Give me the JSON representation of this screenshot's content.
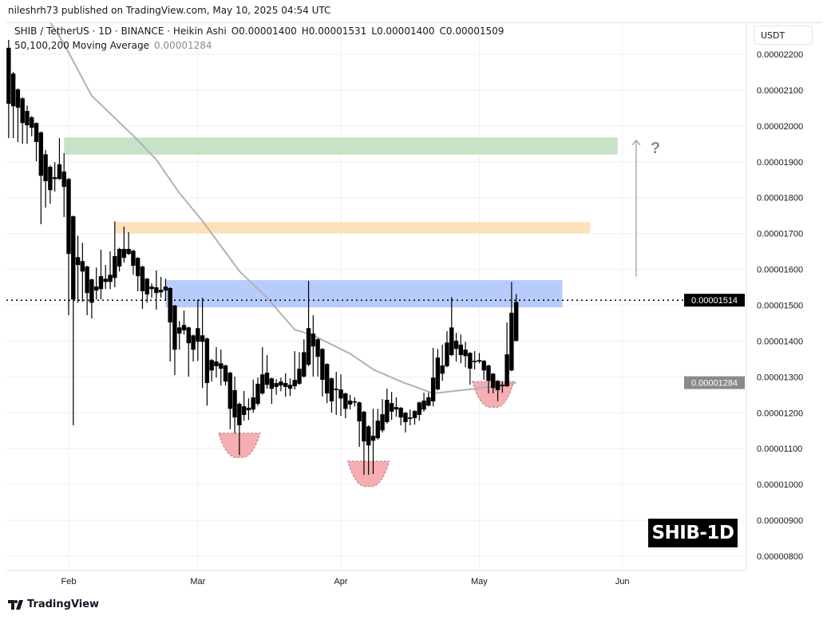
{
  "header": {
    "published": "nileshrh73 published on TradingView.com, May 10, 2025 04:54 UTC",
    "symbol": "SHIB / TetherUS · 1D · BINANCE · Heikin Ashi",
    "open": "O0.00001400",
    "high": "H0.00001531",
    "low": "L0.00001400",
    "close": "C0.00001509",
    "ma_label": "50,100,200 Moving Average",
    "ma_value": "0.00001284"
  },
  "currency_button": "USDT",
  "ticker_label": "SHIB-1D",
  "footer": {
    "logo_text": "TradingView"
  },
  "colors": {
    "candle": "#000000",
    "ma_line": "#b2b2b2",
    "green_zone": "#c3e2c4",
    "orange_zone": "#fde0b5",
    "blue_zone": "#b3c8fc",
    "bowl": "#f7aeb3",
    "grid": "#eef0f4"
  },
  "chart_data": {
    "type": "candlestick",
    "style": "Heikin Ashi",
    "ylim": [
      7.7e-06,
      2.28e-05
    ],
    "y_ticks": [
      "0.00002200",
      "0.00002100",
      "0.00002000",
      "0.00001900",
      "0.00001800",
      "0.00001700",
      "0.00001600",
      "0.00001500",
      "0.00001400",
      "0.00001300",
      "0.00001200",
      "0.00001100",
      "0.00001000",
      "0.00000900",
      "0.00000800"
    ],
    "x_ticks": [
      {
        "label": "Feb",
        "date": "2025-02-01"
      },
      {
        "label": "Mar",
        "date": "2025-03-01"
      },
      {
        "label": "Apr",
        "date": "2025-04-01"
      },
      {
        "label": "May",
        "date": "2025-05-01"
      },
      {
        "label": "Jun",
        "date": "2025-06-01"
      }
    ],
    "grid": true,
    "candles_columns": [
      "date",
      "open",
      "high",
      "low",
      "close"
    ],
    "candles": [
      [
        "2025-01-19",
        2.218e-05,
        2.24e-05,
        1.966e-05,
        2.062e-05
      ],
      [
        "2025-01-20",
        2.146e-05,
        2.151e-05,
        1.966e-05,
        2.055e-05
      ],
      [
        "2025-01-21",
        2.102e-05,
        2.105e-05,
        1.955e-05,
        2.051e-05
      ],
      [
        "2025-01-22",
        2.077e-05,
        2.08e-05,
        1.95e-05,
        2.008e-05
      ],
      [
        "2025-01-23",
        2.042e-05,
        2.057e-05,
        1.95e-05,
        2.002e-05
      ],
      [
        "2025-01-24",
        2.024e-05,
        2.028e-05,
        1.971e-05,
        1.995e-05
      ],
      [
        "2025-01-25",
        2.008e-05,
        2.01e-05,
        1.901e-05,
        1.955e-05
      ],
      [
        "2025-01-26",
        1.982e-05,
        1.985e-05,
        1.726e-05,
        1.861e-05
      ],
      [
        "2025-01-27",
        1.921e-05,
        1.933e-05,
        1.772e-05,
        1.846e-05
      ],
      [
        "2025-01-28",
        1.886e-05,
        1.89e-05,
        1.783e-05,
        1.821e-05
      ],
      [
        "2025-01-29",
        1.852e-05,
        1.899e-05,
        1.817e-05,
        1.857e-05
      ],
      [
        "2025-01-30",
        1.852e-05,
        1.966e-05,
        1.85e-05,
        1.893e-05
      ],
      [
        "2025-01-31",
        1.873e-05,
        1.924e-05,
        1.746e-05,
        1.83e-05
      ],
      [
        "2025-02-01",
        1.852e-05,
        1.855e-05,
        1.472e-05,
        1.643e-05
      ],
      [
        "2025-02-02",
        1.748e-05,
        1.75e-05,
        1.165e-05,
        1.516e-05
      ],
      [
        "2025-02-03",
        1.612e-05,
        1.694e-05,
        1.507e-05,
        1.634e-05
      ],
      [
        "2025-02-04",
        1.623e-05,
        1.674e-05,
        1.51e-05,
        1.594e-05
      ],
      [
        "2025-02-05",
        1.608e-05,
        1.61e-05,
        1.472e-05,
        1.534e-05
      ],
      [
        "2025-02-06",
        1.572e-05,
        1.574e-05,
        1.463e-05,
        1.507e-05
      ],
      [
        "2025-02-07",
        1.541e-05,
        1.605e-05,
        1.516e-05,
        1.552e-05
      ],
      [
        "2025-02-08",
        1.545e-05,
        1.655e-05,
        1.516e-05,
        1.581e-05
      ],
      [
        "2025-02-09",
        1.574e-05,
        1.612e-05,
        1.545e-05,
        1.565e-05
      ],
      [
        "2025-02-10",
        1.565e-05,
        1.65e-05,
        1.545e-05,
        1.585e-05
      ],
      [
        "2025-02-11",
        1.576e-05,
        1.734e-05,
        1.55e-05,
        1.637e-05
      ],
      [
        "2025-02-12",
        1.608e-05,
        1.66e-05,
        1.594e-05,
        1.657e-05
      ],
      [
        "2025-02-13",
        1.632e-05,
        1.719e-05,
        1.619e-05,
        1.657e-05
      ],
      [
        "2025-02-14",
        1.657e-05,
        1.704e-05,
        1.64e-05,
        1.643e-05
      ],
      [
        "2025-02-15",
        1.652e-05,
        1.655e-05,
        1.585e-05,
        1.61e-05
      ],
      [
        "2025-02-16",
        1.632e-05,
        1.634e-05,
        1.539e-05,
        1.581e-05
      ],
      [
        "2025-02-17",
        1.608e-05,
        1.61e-05,
        1.49e-05,
        1.539e-05
      ],
      [
        "2025-02-18",
        1.574e-05,
        1.576e-05,
        1.507e-05,
        1.53e-05
      ],
      [
        "2025-02-19",
        1.545e-05,
        1.561e-05,
        1.521e-05,
        1.552e-05
      ],
      [
        "2025-02-20",
        1.55e-05,
        1.597e-05,
        1.488e-05,
        1.534e-05
      ],
      [
        "2025-02-21",
        1.536e-05,
        1.579e-05,
        1.521e-05,
        1.543e-05
      ],
      [
        "2025-02-22",
        1.541e-05,
        1.574e-05,
        1.514e-05,
        1.552e-05
      ],
      [
        "2025-02-23",
        1.548e-05,
        1.55e-05,
        1.343e-05,
        1.452e-05
      ],
      [
        "2025-02-24",
        1.499e-05,
        1.501e-05,
        1.305e-05,
        1.376e-05
      ],
      [
        "2025-02-25",
        1.421e-05,
        1.456e-05,
        1.376e-05,
        1.438e-05
      ],
      [
        "2025-02-26",
        1.43e-05,
        1.485e-05,
        1.418e-05,
        1.445e-05
      ],
      [
        "2025-02-27",
        1.438e-05,
        1.44e-05,
        1.301e-05,
        1.394e-05
      ],
      [
        "2025-02-28",
        1.416e-05,
        1.418e-05,
        1.343e-05,
        1.376e-05
      ],
      [
        "2025-03-01",
        1.398e-05,
        1.516e-05,
        1.345e-05,
        1.436e-05
      ],
      [
        "2025-03-02",
        1.416e-05,
        1.521e-05,
        1.269e-05,
        1.398e-05
      ],
      [
        "2025-03-03",
        1.407e-05,
        1.41e-05,
        1.22e-05,
        1.283e-05
      ],
      [
        "2025-03-04",
        1.318e-05,
        1.35e-05,
        1.287e-05,
        1.347e-05
      ],
      [
        "2025-03-05",
        1.343e-05,
        1.383e-05,
        1.298e-05,
        1.33e-05
      ],
      [
        "2025-03-06",
        1.338e-05,
        1.376e-05,
        1.276e-05,
        1.323e-05
      ],
      [
        "2025-03-07",
        1.332e-05,
        1.334e-05,
        1.276e-05,
        1.287e-05
      ],
      [
        "2025-03-08",
        1.312e-05,
        1.314e-05,
        1.154e-05,
        1.211e-05
      ],
      [
        "2025-03-09",
        1.263e-05,
        1.301e-05,
        1.143e-05,
        1.187e-05
      ],
      [
        "2025-03-10",
        1.225e-05,
        1.229e-05,
        1.082e-05,
        1.165e-05
      ],
      [
        "2025-03-11",
        1.194e-05,
        1.261e-05,
        1.178e-05,
        1.218e-05
      ],
      [
        "2025-03-12",
        1.214e-05,
        1.24e-05,
        1.18e-05,
        1.207e-05
      ],
      [
        "2025-03-13",
        1.209e-05,
        1.292e-05,
        1.2e-05,
        1.243e-05
      ],
      [
        "2025-03-14",
        1.225e-05,
        1.298e-05,
        1.22e-05,
        1.281e-05
      ],
      [
        "2025-03-15",
        1.254e-05,
        1.383e-05,
        1.25e-05,
        1.307e-05
      ],
      [
        "2025-03-16",
        1.312e-05,
        1.361e-05,
        1.267e-05,
        1.278e-05
      ],
      [
        "2025-03-17",
        1.296e-05,
        1.298e-05,
        1.225e-05,
        1.267e-05
      ],
      [
        "2025-03-18",
        1.272e-05,
        1.294e-05,
        1.25e-05,
        1.283e-05
      ],
      [
        "2025-03-19",
        1.276e-05,
        1.298e-05,
        1.26e-05,
        1.287e-05
      ],
      [
        "2025-03-20",
        1.283e-05,
        1.31e-05,
        1.245e-05,
        1.272e-05
      ],
      [
        "2025-03-21",
        1.278e-05,
        1.296e-05,
        1.247e-05,
        1.267e-05
      ],
      [
        "2025-03-22",
        1.274e-05,
        1.372e-05,
        1.265e-05,
        1.292e-05
      ],
      [
        "2025-03-23",
        1.281e-05,
        1.369e-05,
        1.278e-05,
        1.323e-05
      ],
      [
        "2025-03-24",
        1.301e-05,
        1.405e-05,
        1.298e-05,
        1.369e-05
      ],
      [
        "2025-03-25",
        1.334e-05,
        1.568e-05,
        1.33e-05,
        1.436e-05
      ],
      [
        "2025-03-26",
        1.421e-05,
        1.472e-05,
        1.301e-05,
        1.385e-05
      ],
      [
        "2025-03-27",
        1.405e-05,
        1.408e-05,
        1.301e-05,
        1.356e-05
      ],
      [
        "2025-03-28",
        1.378e-05,
        1.38e-05,
        1.245e-05,
        1.292e-05
      ],
      [
        "2025-03-29",
        1.336e-05,
        1.338e-05,
        1.227e-05,
        1.254e-05
      ],
      [
        "2025-03-30",
        1.296e-05,
        1.298e-05,
        1.2e-05,
        1.232e-05
      ],
      [
        "2025-03-31",
        1.263e-05,
        1.314e-05,
        1.194e-05,
        1.267e-05
      ],
      [
        "2025-04-01",
        1.265e-05,
        1.307e-05,
        1.191e-05,
        1.24e-05
      ],
      [
        "2025-04-02",
        1.254e-05,
        1.256e-05,
        1.185e-05,
        1.211e-05
      ],
      [
        "2025-04-03",
        1.223e-05,
        1.25e-05,
        1.209e-05,
        1.234e-05
      ],
      [
        "2025-04-04",
        1.232e-05,
        1.243e-05,
        1.218e-05,
        1.229e-05
      ],
      [
        "2025-04-05",
        1.229e-05,
        1.231e-05,
        1.105e-05,
        1.176e-05
      ],
      [
        "2025-04-06",
        1.203e-05,
        1.205e-05,
        1.027e-05,
        1.12e-05
      ],
      [
        "2025-04-07",
        1.162e-05,
        1.165e-05,
        1.027e-05,
        1.109e-05
      ],
      [
        "2025-04-08",
        1.122e-05,
        1.211e-05,
        1.029e-05,
        1.136e-05
      ],
      [
        "2025-04-09",
        1.129e-05,
        1.211e-05,
        1.125e-05,
        1.178e-05
      ],
      [
        "2025-04-10",
        1.151e-05,
        1.238e-05,
        1.145e-05,
        1.196e-05
      ],
      [
        "2025-04-11",
        1.174e-05,
        1.267e-05,
        1.17e-05,
        1.236e-05
      ],
      [
        "2025-04-12",
        1.227e-05,
        1.258e-05,
        1.18e-05,
        1.203e-05
      ],
      [
        "2025-04-13",
        1.209e-05,
        1.243e-05,
        1.189e-05,
        1.216e-05
      ],
      [
        "2025-04-14",
        1.214e-05,
        1.216e-05,
        1.165e-05,
        1.187e-05
      ],
      [
        "2025-04-15",
        1.2e-05,
        1.202e-05,
        1.145e-05,
        1.174e-05
      ],
      [
        "2025-04-16",
        1.183e-05,
        1.209e-05,
        1.165e-05,
        1.187e-05
      ],
      [
        "2025-04-17",
        1.185e-05,
        1.207e-05,
        1.167e-05,
        1.205e-05
      ],
      [
        "2025-04-18",
        1.194e-05,
        1.231e-05,
        1.178e-05,
        1.229e-05
      ],
      [
        "2025-04-19",
        1.209e-05,
        1.256e-05,
        1.203e-05,
        1.234e-05
      ],
      [
        "2025-04-20",
        1.22e-05,
        1.256e-05,
        1.218e-05,
        1.243e-05
      ],
      [
        "2025-04-21",
        1.232e-05,
        1.381e-05,
        1.218e-05,
        1.298e-05
      ],
      [
        "2025-04-22",
        1.265e-05,
        1.378e-05,
        1.263e-05,
        1.354e-05
      ],
      [
        "2025-04-23",
        1.332e-05,
        1.39e-05,
        1.289e-05,
        1.309e-05
      ],
      [
        "2025-04-24",
        1.33e-05,
        1.428e-05,
        1.327e-05,
        1.396e-05
      ],
      [
        "2025-04-25",
        1.361e-05,
        1.523e-05,
        1.358e-05,
        1.438e-05
      ],
      [
        "2025-04-26",
        1.401e-05,
        1.423e-05,
        1.343e-05,
        1.378e-05
      ],
      [
        "2025-04-27",
        1.361e-05,
        1.418e-05,
        1.338e-05,
        1.39e-05
      ],
      [
        "2025-04-28",
        1.376e-05,
        1.398e-05,
        1.327e-05,
        1.358e-05
      ],
      [
        "2025-04-29",
        1.367e-05,
        1.369e-05,
        1.278e-05,
        1.323e-05
      ],
      [
        "2025-04-30",
        1.341e-05,
        1.372e-05,
        1.321e-05,
        1.345e-05
      ],
      [
        "2025-05-01",
        1.343e-05,
        1.367e-05,
        1.338e-05,
        1.347e-05
      ],
      [
        "2025-05-02",
        1.345e-05,
        1.347e-05,
        1.292e-05,
        1.318e-05
      ],
      [
        "2025-05-03",
        1.332e-05,
        1.334e-05,
        1.254e-05,
        1.289e-05
      ],
      [
        "2025-05-04",
        1.309e-05,
        1.311e-05,
        1.254e-05,
        1.269e-05
      ],
      [
        "2025-05-05",
        1.289e-05,
        1.291e-05,
        1.232e-05,
        1.263e-05
      ],
      [
        "2025-05-06",
        1.274e-05,
        1.287e-05,
        1.256e-05,
        1.278e-05
      ],
      [
        "2025-05-07",
        1.274e-05,
        1.452e-05,
        1.272e-05,
        1.363e-05
      ],
      [
        "2025-05-08",
        1.318e-05,
        1.565e-05,
        1.316e-05,
        1.479e-05
      ],
      [
        "2025-05-09",
        1.4e-05,
        1.531e-05,
        1.4e-05,
        1.509e-05
      ]
    ],
    "moving_average": [
      [
        "2025-01-28",
        2.29e-05
      ],
      [
        "2025-01-31",
        2.229e-05
      ],
      [
        "2025-02-06",
        2.084e-05
      ],
      [
        "2025-02-15",
        1.973e-05
      ],
      [
        "2025-02-20",
        1.906e-05
      ],
      [
        "2025-02-25",
        1.813e-05
      ],
      [
        "2025-03-02",
        1.735e-05
      ],
      [
        "2025-03-10",
        1.595e-05
      ],
      [
        "2025-03-16",
        1.521e-05
      ],
      [
        "2025-03-22",
        1.432e-05
      ],
      [
        "2025-03-26",
        1.416e-05
      ],
      [
        "2025-04-03",
        1.365e-05
      ],
      [
        "2025-04-08",
        1.321e-05
      ],
      [
        "2025-04-14",
        1.287e-05
      ],
      [
        "2025-04-21",
        1.254e-05
      ],
      [
        "2025-04-30",
        1.267e-05
      ],
      [
        "2025-05-09",
        1.284e-05
      ]
    ],
    "last_price": {
      "value": 1.514e-05,
      "label": "0.00001514"
    },
    "ma_last": {
      "value": 1.284e-05,
      "label": "0.00001284"
    },
    "zones": [
      {
        "name": "green-resistance-zone",
        "from": "2025-01-31",
        "to": "2025-05-31",
        "top": 1.968e-05,
        "bottom": 1.92e-05,
        "color": "#c3e2c4"
      },
      {
        "name": "orange-resistance-zone",
        "from": "2025-02-11",
        "to": "2025-05-25",
        "top": 1.732e-05,
        "bottom": 1.701e-05,
        "color": "#fde0b5"
      },
      {
        "name": "blue-resistance-zone",
        "from": "2025-02-22",
        "to": "2025-05-19",
        "top": 1.57e-05,
        "bottom": 1.494e-05,
        "color": "#b3c8fc"
      }
    ],
    "bowls": [
      {
        "center": "2025-03-10",
        "top": 1.143e-05,
        "bottom": 1.076e-05
      },
      {
        "center": "2025-04-07",
        "top": 1.065e-05,
        "bottom": 9.95e-06
      },
      {
        "center": "2025-05-04",
        "top": 1.287e-05,
        "bottom": 1.216e-05
      }
    ],
    "arrow": {
      "date": "2025-06-04",
      "from": 1.58e-05,
      "to": 1.96e-05,
      "label": "?"
    }
  }
}
